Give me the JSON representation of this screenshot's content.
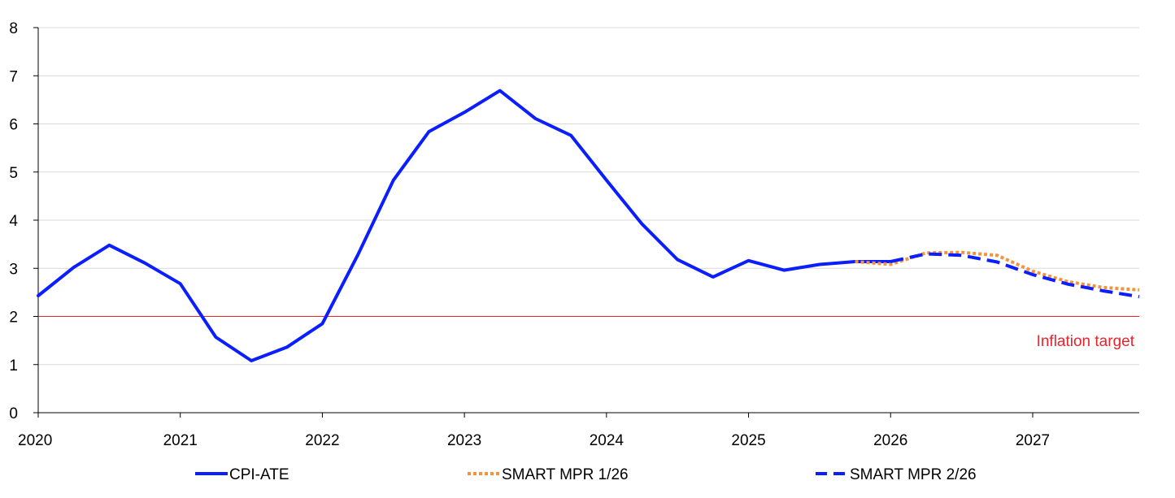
{
  "chart_data": {
    "type": "line",
    "title": "",
    "xlabel": "",
    "ylabel": "",
    "xlim": [
      2020.0,
      2027.75
    ],
    "ylim": [
      0,
      8
    ],
    "y_ticks": [
      "0",
      "1",
      "2",
      "3",
      "4",
      "5",
      "6",
      "7",
      "8"
    ],
    "x_ticks": [
      "2020",
      "2021",
      "2022",
      "2023",
      "2024",
      "2025",
      "2026",
      "2027"
    ],
    "grid": true,
    "legend_position": "bottom",
    "series": [
      {
        "name": "CPI-ATE",
        "color": "#0a1eff",
        "style": "solid",
        "x": [
          2020.0,
          2020.25,
          2020.5,
          2020.75,
          2021.0,
          2021.25,
          2021.5,
          2021.75,
          2022.0,
          2022.25,
          2022.5,
          2022.75,
          2023.0,
          2023.25,
          2023.5,
          2023.75,
          2024.0,
          2024.25,
          2024.5,
          2024.75,
          2025.0,
          2025.25,
          2025.5,
          2025.75,
          2026.0
        ],
        "y": [
          2.43,
          3.02,
          3.48,
          3.11,
          2.68,
          1.57,
          1.08,
          1.36,
          1.85,
          3.28,
          4.83,
          5.84,
          6.24,
          6.69,
          6.11,
          5.76,
          4.83,
          3.92,
          3.18,
          2.82,
          3.16,
          2.96,
          3.08,
          3.14,
          3.14
        ]
      },
      {
        "name": "SMART MPR 1/26",
        "color": "#f5923e",
        "style": "dotted",
        "x": [
          2025.75,
          2026.0,
          2026.25,
          2026.5,
          2026.75,
          2027.0,
          2027.25,
          2027.5,
          2027.75
        ],
        "y": [
          3.14,
          3.08,
          3.32,
          3.33,
          3.27,
          2.94,
          2.72,
          2.6,
          2.55
        ]
      },
      {
        "name": "SMART MPR 2/26",
        "color": "#0a1eff",
        "style": "dashed",
        "x": [
          2026.0,
          2026.25,
          2026.5,
          2026.75,
          2027.0,
          2027.25,
          2027.5,
          2027.75
        ],
        "y": [
          3.14,
          3.3,
          3.27,
          3.13,
          2.87,
          2.67,
          2.53,
          2.41
        ]
      }
    ],
    "reference_line": {
      "y": 2,
      "color": "#e8242c",
      "label": "Inflation target"
    }
  }
}
